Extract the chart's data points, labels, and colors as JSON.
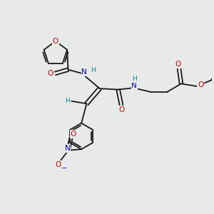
{
  "background_color": "#e8eaea",
  "bond_color": "#1a1a1a",
  "atom_colors": {
    "O": "#cc0000",
    "N": "#0000cc",
    "C": "#1a1a1a",
    "H": "#008888"
  },
  "figsize": [
    3.0,
    3.0
  ],
  "dpi": 100
}
